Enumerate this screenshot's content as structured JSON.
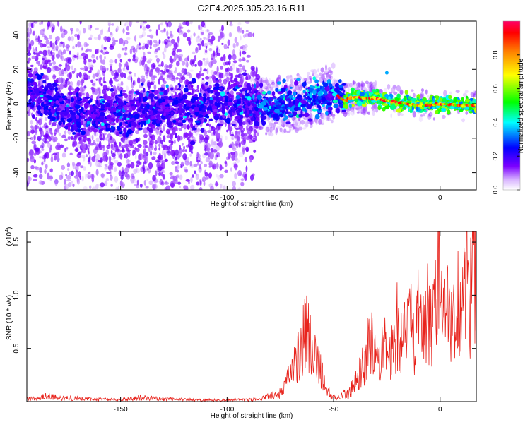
{
  "title": "C2E4.2025.305.23.16.R11",
  "chart_data": [
    {
      "type": "heatmap",
      "name": "spectrogram",
      "xlabel": "Height of straight line (km)",
      "ylabel": "Frequency (Hz)",
      "xlim": [
        -194,
        17
      ],
      "ylim": [
        -50,
        48
      ],
      "x_ticks": [
        -150,
        -100,
        -50,
        0
      ],
      "y_ticks": [
        40,
        20,
        0,
        -20,
        -40
      ],
      "x_tick_labels": [
        "-150",
        "-100",
        "-50",
        "0"
      ],
      "y_tick_labels": [
        "40",
        "20",
        "0",
        "-20",
        "-40"
      ],
      "colorbar": {
        "label": "Normalized spectral amplitude",
        "range": [
          0.0,
          1.0
        ],
        "ticks": [
          0.0,
          0.2,
          0.4,
          0.6,
          0.8
        ],
        "tick_labels": [
          "0.0",
          "0.2",
          "0.4",
          "0.6",
          "0.8"
        ],
        "colormap": [
          "#ffffff",
          "#7b00ff",
          "#0000ff",
          "#00ffff",
          "#00ff00",
          "#ffff00",
          "#ff8000",
          "#ff0000",
          "#ff0066"
        ]
      },
      "ridge": {
        "x": [
          -194,
          -170,
          -150,
          -130,
          -110,
          -90,
          -80,
          -70,
          -60,
          -50,
          -45,
          -40,
          -30,
          -20,
          -10,
          0,
          10,
          17
        ],
        "y": [
          8,
          -7,
          -6,
          -3,
          -1,
          0,
          -2,
          0,
          3,
          6,
          2,
          4,
          3,
          1,
          -1,
          0,
          -1,
          -1
        ]
      }
    },
    {
      "type": "line",
      "name": "snr",
      "xlabel": "Height of straight line (km)",
      "ylabel": "SNR (10 * v/v)",
      "y_multiplier": "(x10",
      "y_multiplier_exp": "4",
      "y_multiplier_close": ")",
      "xlim": [
        -194,
        17
      ],
      "ylim": [
        0,
        1.6
      ],
      "x_ticks": [
        -150,
        -100,
        -50,
        0
      ],
      "y_ticks": [
        0.5,
        1.0,
        1.5
      ],
      "x_tick_labels": [
        "-150",
        "-100",
        "-50",
        "0"
      ],
      "y_tick_labels": [
        "0.5",
        "1.0",
        "1.5"
      ],
      "color": "#e8231c",
      "series": {
        "x": [
          -194,
          -185,
          -175,
          -165,
          -150,
          -140,
          -130,
          -115,
          -100,
          -90,
          -85,
          -80,
          -75,
          -72,
          -70,
          -68,
          -66,
          -64,
          -62,
          -60,
          -58,
          -56,
          -54,
          -52,
          -50,
          -48,
          -45,
          -42,
          -40,
          -38,
          -36,
          -34,
          -32,
          -30,
          -28,
          -26,
          -24,
          -22,
          -20,
          -18,
          -16,
          -14,
          -12,
          -10,
          -8,
          -6,
          -4,
          -2,
          0,
          2,
          4,
          6,
          8,
          10,
          12,
          14,
          16,
          17
        ],
        "y": [
          0.03,
          0.06,
          0.04,
          0.03,
          0.02,
          0.05,
          0.03,
          0.02,
          0.02,
          0.02,
          0.03,
          0.06,
          0.1,
          0.2,
          0.28,
          0.4,
          0.55,
          0.65,
          0.72,
          0.6,
          0.45,
          0.32,
          0.2,
          0.1,
          0.05,
          0.04,
          0.08,
          0.12,
          0.18,
          0.28,
          0.4,
          0.55,
          0.6,
          0.45,
          0.5,
          0.62,
          0.38,
          0.55,
          0.8,
          0.6,
          0.7,
          0.92,
          0.55,
          0.95,
          0.7,
          1.0,
          0.75,
          1.1,
          1.6,
          0.8,
          1.05,
          0.65,
          1.2,
          0.9,
          1.35,
          1.0,
          1.45,
          1.2
        ]
      }
    }
  ]
}
